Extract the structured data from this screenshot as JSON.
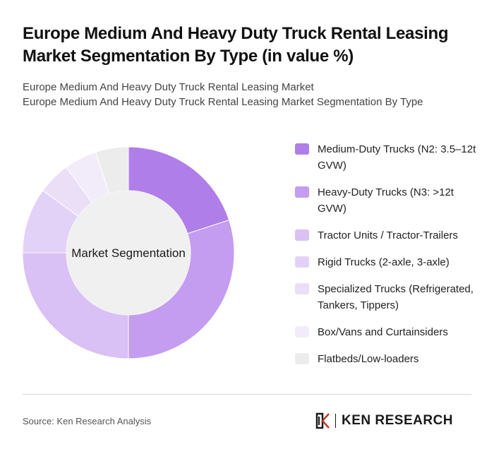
{
  "header": {
    "title": "Europe Medium And Heavy Duty Truck Rental Leasing Market Segmentation By Type (in value %)",
    "subtitle_line1": "Europe Medium And Heavy Duty Truck Rental Leasing Market",
    "subtitle_line2": "Europe Medium And Heavy Duty Truck Rental Leasing Market Segmentation By Type"
  },
  "chart_data": {
    "type": "pie",
    "variant": "donut",
    "center_label": "Market Segmentation",
    "legend_position": "right",
    "categories": [
      "Medium-Duty Trucks (N2: 3.5–12t GVW)",
      "Heavy-Duty Trucks (N3: >12t GVW)",
      "Tractor Units / Tractor-Trailers",
      "Rigid Trucks (2-axle, 3-axle)",
      "Specialized Trucks (Refrigerated, Tankers, Tippers)",
      "Box/Vans and Curtainsiders",
      "Flatbeds/Low-loaders"
    ],
    "values": [
      20,
      30,
      25,
      10,
      5,
      5,
      5
    ],
    "colors": [
      "#b07ee8",
      "#c49cf0",
      "#d9c0f5",
      "#e3d2f7",
      "#ebdff8",
      "#f2ecfa",
      "#ececec"
    ]
  },
  "footer": {
    "source": "Source: Ken Research Analysis",
    "brand": "KEN RESEARCH",
    "brand_logo_icon": "ken-research-logo-icon"
  }
}
